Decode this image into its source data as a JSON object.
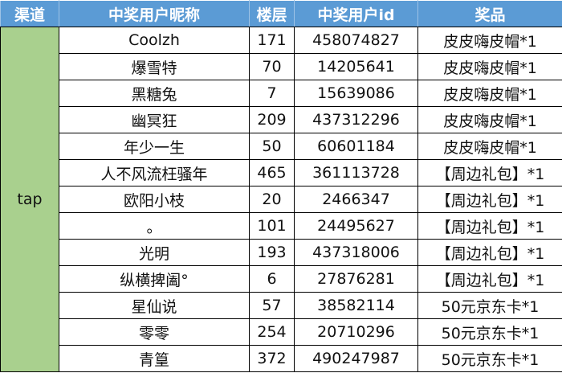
{
  "headers": [
    "渠道",
    "中奖用户昵称",
    "楼层",
    "中奖用户id",
    "奖品"
  ],
  "channel": "tap",
  "colors": {
    "header_bg": "#5b9bd5",
    "channel_bg": "#a9d08e"
  },
  "rows": [
    {
      "nickname": "Coolzh",
      "floor": "171",
      "user_id": "458074827",
      "prize": "皮皮嗨皮帽*1"
    },
    {
      "nickname": "爆雪特",
      "floor": "70",
      "user_id": "14205641",
      "prize": "皮皮嗨皮帽*1"
    },
    {
      "nickname": "黑糖兔",
      "floor": "7",
      "user_id": "15639086",
      "prize": "皮皮嗨皮帽*1"
    },
    {
      "nickname": "幽冥狂",
      "floor": "209",
      "user_id": "437312296",
      "prize": "皮皮嗨皮帽*1"
    },
    {
      "nickname": "年少一生",
      "floor": "50",
      "user_id": "60601184",
      "prize": "皮皮嗨皮帽*1"
    },
    {
      "nickname": "人不风流枉骚年",
      "floor": "465",
      "user_id": "361113728",
      "prize": "【周边礼包】*1"
    },
    {
      "nickname": "欧阳小枝",
      "floor": "20",
      "user_id": "2466347",
      "prize": "【周边礼包】*1"
    },
    {
      "nickname": "。",
      "floor": "101",
      "user_id": "24495627",
      "prize": "【周边礼包】*1"
    },
    {
      "nickname": "光明",
      "floor": "193",
      "user_id": "437318006",
      "prize": "【周边礼包】*1"
    },
    {
      "nickname": "纵横捭阖°",
      "floor": "6",
      "user_id": "27876281",
      "prize": "【周边礼包】*1"
    },
    {
      "nickname": "星仙说",
      "floor": "57",
      "user_id": "38582114",
      "prize": "50元京东卡*1"
    },
    {
      "nickname": "零零",
      "floor": "254",
      "user_id": "20710296",
      "prize": "50元京东卡*1"
    },
    {
      "nickname": "青篁",
      "floor": "372",
      "user_id": "490247987",
      "prize": "50元京东卡*1"
    }
  ]
}
